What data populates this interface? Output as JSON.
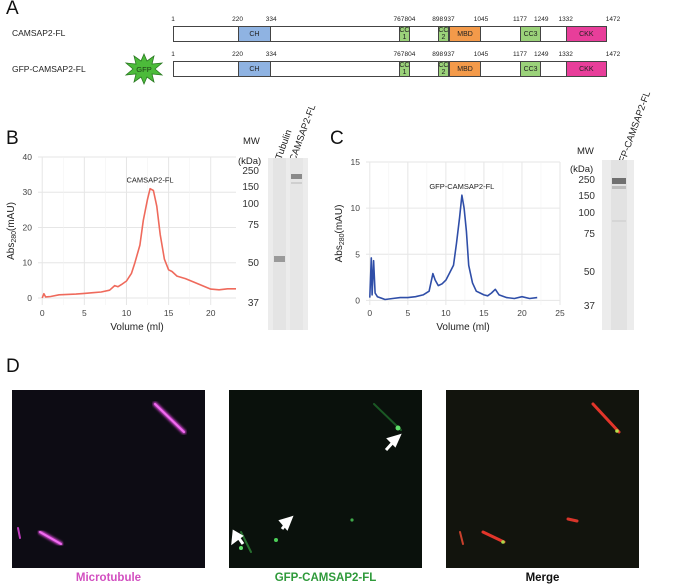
{
  "panels": {
    "A": "A",
    "B": "B",
    "C": "C",
    "D": "D"
  },
  "panel_a": {
    "constructs": [
      {
        "name": "CAMSAP2-FL"
      },
      {
        "name": "GFP-CAMSAP2-FL",
        "tag": "GFP"
      }
    ],
    "positions": [
      "1",
      "220",
      "334",
      "767",
      "804",
      "898",
      "937",
      "1045",
      "1177",
      "1249",
      "1332",
      "1472"
    ],
    "domains": [
      {
        "label": "CH",
        "start": 220,
        "end": 334,
        "color": "#8fb3e2"
      },
      {
        "label": "CC1",
        "line1": "CC",
        "line2": "1",
        "start": 767,
        "end": 804,
        "color": "#9bd27a"
      },
      {
        "label": "CC2",
        "line1": "CC",
        "line2": "2",
        "start": 898,
        "end": 937,
        "color": "#9bd27a"
      },
      {
        "label": "MBD",
        "start": 937,
        "end": 1045,
        "color": "#f39a4a"
      },
      {
        "label": "CC3",
        "start": 1177,
        "end": 1249,
        "color": "#9bd27a"
      },
      {
        "label": "CKK",
        "start": 1332,
        "end": 1472,
        "color": "#e83e9a"
      }
    ],
    "total_length": 1472
  },
  "chart_data": [
    {
      "type": "line",
      "panel": "B",
      "annotation": "CAMSAP2-FL",
      "xlabel": "Volume (ml)",
      "ylabel_main": "Abs",
      "ylabel_sub": "280",
      "ylabel_unit": "(mAU)",
      "xlim": [
        -0.5,
        23
      ],
      "ylim": [
        -2,
        40
      ],
      "xticks": [
        0,
        5,
        10,
        15,
        20
      ],
      "yticks": [
        0,
        10,
        20,
        30,
        40
      ],
      "grid": true,
      "color": "#ef6a5c",
      "x": [
        0,
        0.2,
        0.4,
        1,
        2,
        3,
        4,
        5,
        6,
        7,
        8,
        8.6,
        9,
        9.4,
        10,
        10.6,
        11,
        11.6,
        12,
        12.5,
        12.8,
        13.2,
        13.6,
        14,
        14.5,
        15,
        15.4,
        16,
        17,
        18,
        19,
        20,
        21,
        22,
        23
      ],
      "y": [
        0,
        1.2,
        0.3,
        0.4,
        0.9,
        1.0,
        1.1,
        1.3,
        1.5,
        1.7,
        2.2,
        3.5,
        3.2,
        3.8,
        4.8,
        7,
        10,
        15,
        22,
        28,
        31,
        30.5,
        26,
        18,
        11,
        8,
        7.5,
        6.2,
        5.5,
        4.5,
        3.5,
        2.5,
        2.3,
        2.6,
        2.6
      ]
    },
    {
      "type": "line",
      "panel": "C",
      "annotation": "GFP-CAMSAP2-FL",
      "xlabel": "Volume (ml)",
      "ylabel_main": "Abs",
      "ylabel_sub": "280",
      "ylabel_unit": "(mAU)",
      "xlim": [
        -0.5,
        25
      ],
      "ylim": [
        -0.5,
        15
      ],
      "xticks": [
        0,
        5,
        10,
        15,
        20,
        25
      ],
      "yticks": [
        0,
        5,
        10,
        15
      ],
      "grid": true,
      "color": "#2f4ea8",
      "x": [
        0,
        0.2,
        0.3,
        0.5,
        0.7,
        1,
        2,
        3,
        4,
        5,
        6,
        7,
        7.8,
        8.3,
        8.6,
        9,
        9.5,
        10,
        10.5,
        11,
        11.4,
        11.8,
        12.1,
        12.4,
        12.7,
        13,
        13.5,
        14,
        14.5,
        15,
        15.5,
        16,
        16.5,
        17,
        18,
        19,
        20,
        21,
        22
      ],
      "y": [
        0.3,
        4.6,
        0.6,
        4.3,
        0.8,
        0.4,
        0.1,
        0.2,
        0.3,
        0.3,
        0.4,
        0.6,
        1.0,
        2.9,
        2.2,
        1.6,
        1.8,
        2.2,
        3.0,
        3.8,
        6.2,
        9.0,
        11.4,
        10.0,
        7.5,
        3.8,
        1.9,
        1.0,
        0.8,
        0.6,
        0.5,
        0.8,
        1.2,
        0.6,
        0.3,
        0.2,
        0.4,
        0.2,
        0.3
      ]
    }
  ],
  "gel_b": {
    "mw_title": "MW",
    "mw_unit": "(kDa)",
    "markers": [
      "250",
      "150",
      "100",
      "75",
      "50",
      "37"
    ],
    "lanes": [
      "Tubulin",
      "CAMSAP2-FL"
    ]
  },
  "gel_c": {
    "mw_title": "MW",
    "mw_unit": "(kDa)",
    "markers": [
      "250",
      "150",
      "100",
      "75",
      "50",
      "37"
    ],
    "lanes": [
      "GFP-CAMSAP2-FL"
    ]
  },
  "panel_d": {
    "images": [
      {
        "caption": "Microtubule",
        "caption_color": "#d24fc0"
      },
      {
        "caption": "GFP-CAMSAP2-FL",
        "caption_color": "#2f9a3b"
      },
      {
        "caption": "Merge",
        "caption_color": "#111111"
      }
    ]
  }
}
